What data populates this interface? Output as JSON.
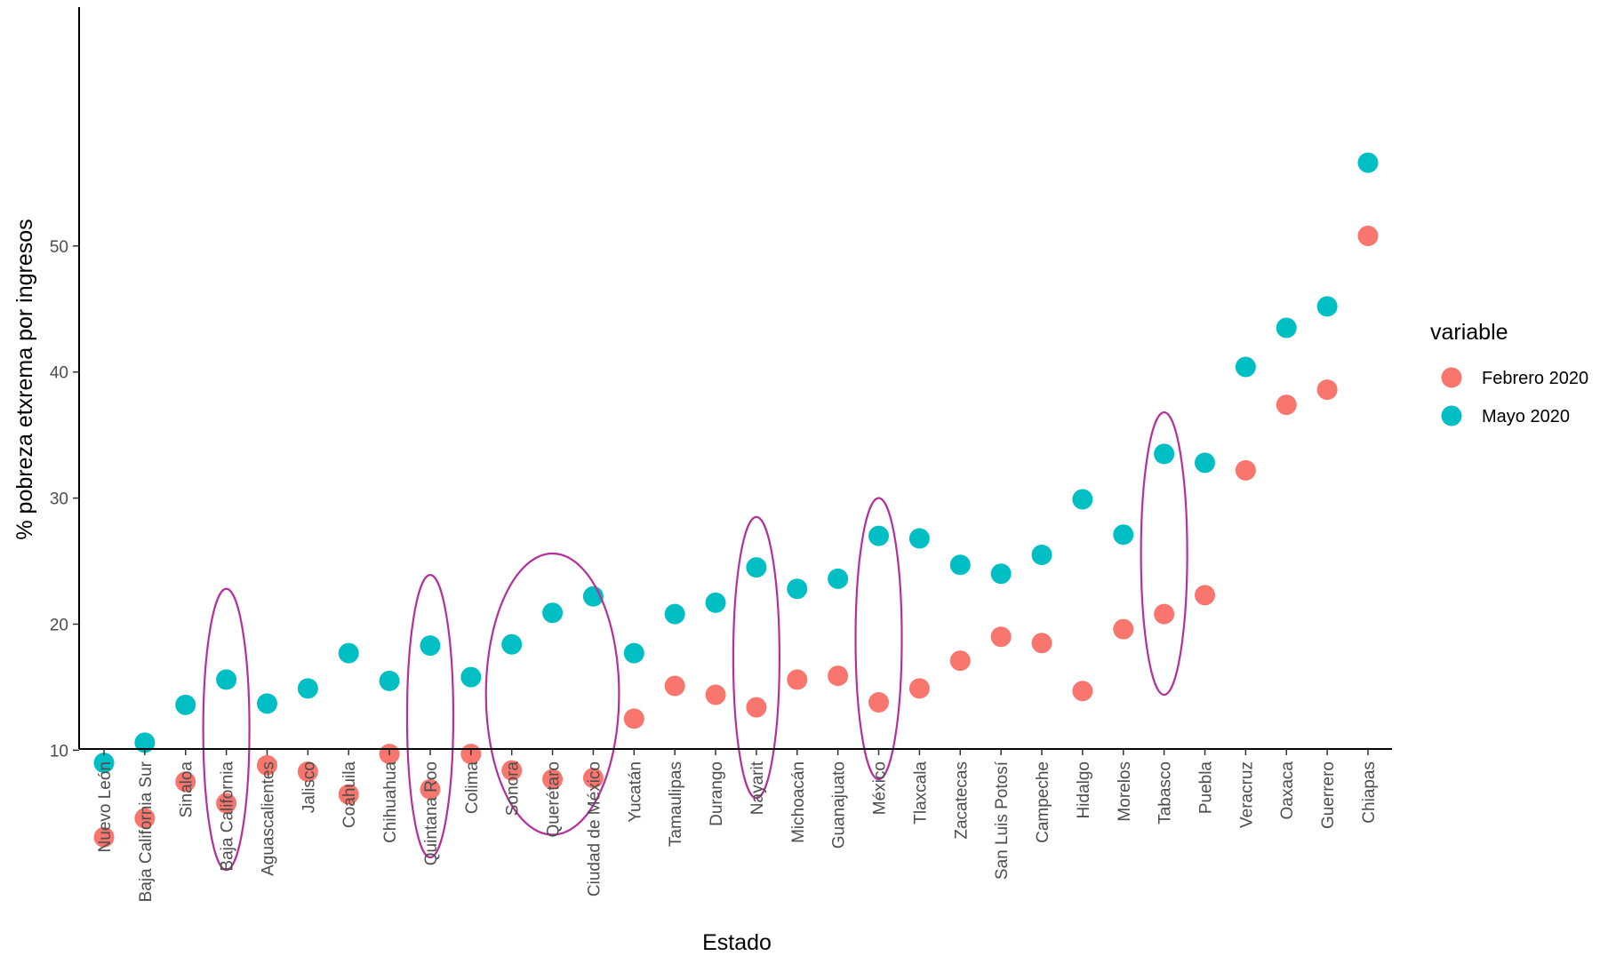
{
  "chart_data": {
    "type": "scatter",
    "xlabel": "Estado",
    "ylabel": "% pobreza etxrema por ingresos",
    "ylim": [
      0.5,
      59
    ],
    "yticks": [
      10,
      20,
      30,
      40,
      50
    ],
    "grid": false,
    "legend": {
      "title": "variable",
      "placement": "right"
    },
    "categories": [
      "Nuevo León",
      "Baja California Sur",
      "Sinaloa",
      "Baja California",
      "Aguascalientes",
      "Jalisco",
      "Coahuila",
      "Chihuahua",
      "Quintana Roo",
      "Colima",
      "Sonora",
      "Querétaro",
      "Ciudad de México",
      "Yucatán",
      "Tamaulipas",
      "Durango",
      "Nayarit",
      "Michoacán",
      "Guanajuato",
      "México",
      "Tlaxcala",
      "Zacatecas",
      "San Luis Potosí",
      "Campeche",
      "Hidalgo",
      "Morelos",
      "Tabasco",
      "Puebla",
      "Veracruz",
      "Oaxaca",
      "Guerrero",
      "Chiapas"
    ],
    "series": [
      {
        "name": "Febrero 2020",
        "color": "#F8766D",
        "values": [
          3.1,
          4.6,
          7.5,
          5.8,
          8.8,
          8.3,
          6.5,
          9.7,
          6.9,
          9.7,
          8.4,
          7.7,
          7.8,
          12.5,
          15.1,
          14.4,
          13.4,
          15.6,
          15.9,
          13.8,
          14.9,
          17.1,
          19.0,
          18.5,
          14.7,
          19.6,
          20.8,
          22.3,
          32.2,
          37.4,
          38.6,
          50.8
        ]
      },
      {
        "name": "Mayo 2020",
        "color": "#00BFC4",
        "values": [
          9.0,
          10.6,
          13.6,
          15.6,
          13.7,
          14.9,
          17.7,
          15.5,
          18.3,
          15.8,
          18.4,
          20.9,
          22.2,
          17.7,
          20.8,
          21.7,
          24.5,
          22.8,
          23.6,
          27.0,
          26.8,
          24.7,
          24.0,
          25.5,
          29.9,
          27.1,
          33.5,
          32.8,
          40.4,
          43.5,
          45.2,
          56.6
        ]
      }
    ],
    "annotations": [
      {
        "shape": "ellipse",
        "color": "#B5309B",
        "covers": [
          "Baja California"
        ],
        "y_range": [
          0.5,
          22.8
        ]
      },
      {
        "shape": "ellipse",
        "color": "#B5309B",
        "covers": [
          "Quintana Roo"
        ],
        "y_range": [
          1.5,
          23.9
        ]
      },
      {
        "shape": "ellipse",
        "color": "#B5309B",
        "covers": [
          "Sonora",
          "Querétaro",
          "Ciudad de México"
        ],
        "y_range": [
          3.3,
          25.6
        ]
      },
      {
        "shape": "ellipse",
        "color": "#B5309B",
        "covers": [
          "Nayarit"
        ],
        "y_range": [
          6.2,
          28.5
        ]
      },
      {
        "shape": "ellipse",
        "color": "#B5309B",
        "covers": [
          "México"
        ],
        "y_range": [
          7.7,
          30.0
        ]
      },
      {
        "shape": "ellipse",
        "color": "#B5309B",
        "covers": [
          "Tabasco"
        ],
        "y_range": [
          14.4,
          36.8
        ]
      }
    ]
  }
}
